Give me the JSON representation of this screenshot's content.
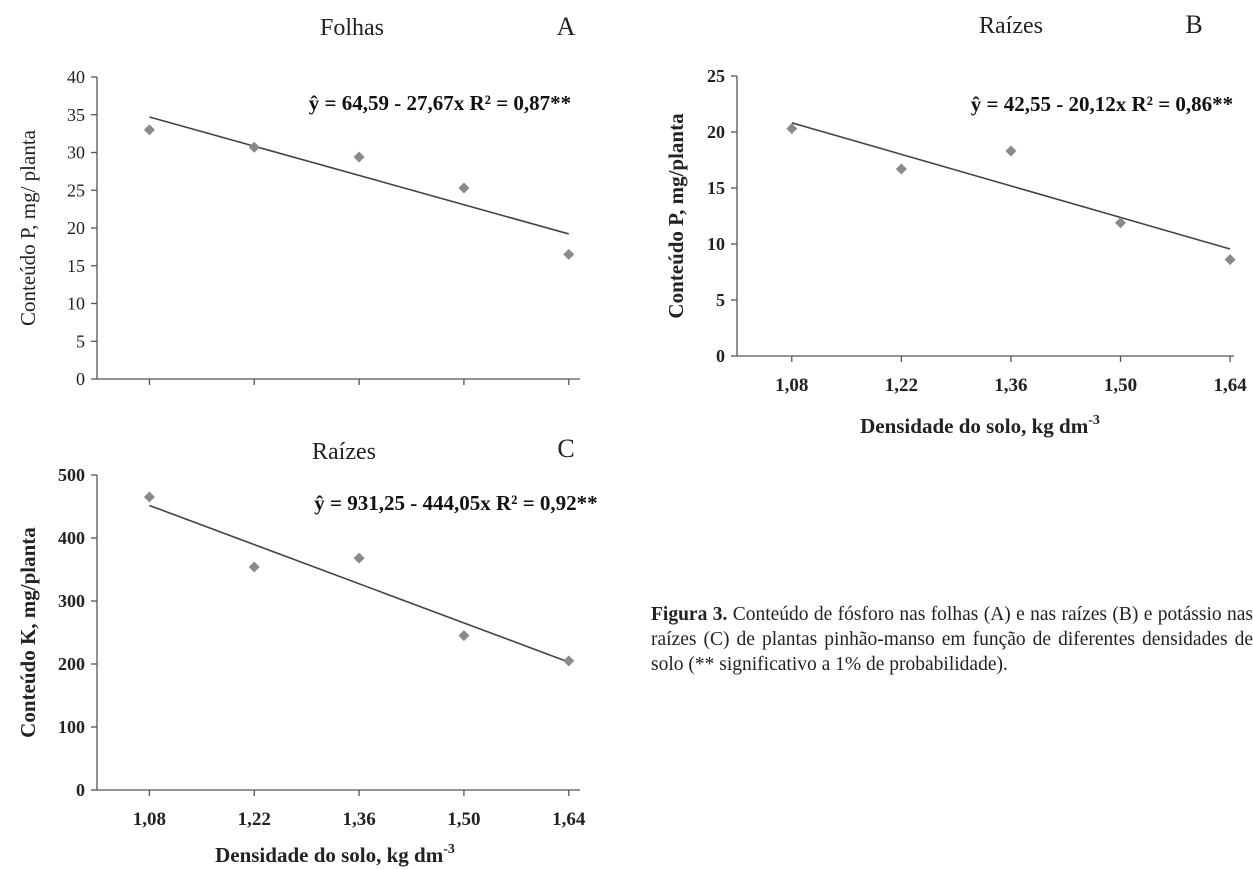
{
  "chart_data": [
    {
      "type": "scatter",
      "panel": "A",
      "title": "Folhas",
      "equation": "ŷ = 64,59 - 27,67x  R² = 0,87**",
      "xlabel": "",
      "ylabel": "Conteúdo P, mg/ planta",
      "ylim": [
        0,
        40
      ],
      "yticks": [
        "0",
        "5",
        "10",
        "15",
        "20",
        "25",
        "30",
        "35",
        "40"
      ],
      "xticks": [],
      "x": [
        1.08,
        1.22,
        1.36,
        1.5,
        1.64
      ],
      "y": [
        33.0,
        30.7,
        29.4,
        25.3,
        16.5
      ],
      "fit": {
        "intercept": 64.59,
        "slope": -27.67
      },
      "grid": false
    },
    {
      "type": "scatter",
      "panel": "B",
      "title": "Raízes",
      "equation": "ŷ = 42,55 - 20,12x  R² = 0,86**",
      "xlabel": "Densidade do solo, kg dm",
      "xlabel_sup": "-3",
      "ylabel": "Conteúdo P, mg/planta",
      "ylim": [
        0,
        25
      ],
      "yticks": [
        "0",
        "5",
        "10",
        "15",
        "20",
        "25"
      ],
      "xticks": [
        "1,08",
        "1,22",
        "1,36",
        "1,50",
        "1,64"
      ],
      "x": [
        1.08,
        1.22,
        1.36,
        1.5,
        1.64
      ],
      "y": [
        20.3,
        16.7,
        18.3,
        11.9,
        8.6
      ],
      "fit": {
        "intercept": 42.55,
        "slope": -20.12
      },
      "grid": false
    },
    {
      "type": "scatter",
      "panel": "C",
      "title": "Raízes",
      "equation": "ŷ = 931,25 - 444,05x  R² = 0,92**",
      "xlabel": "Densidade do solo, kg dm",
      "xlabel_sup": "-3",
      "ylabel": "Conteúdo K, mg/planta",
      "ylim": [
        0,
        500
      ],
      "yticks": [
        "0",
        "100",
        "200",
        "300",
        "400",
        "500"
      ],
      "xticks": [
        "1,08",
        "1,22",
        "1,36",
        "1,50",
        "1,64"
      ],
      "x": [
        1.08,
        1.22,
        1.36,
        1.5,
        1.64
      ],
      "y": [
        465,
        354,
        368,
        245,
        205
      ],
      "fit": {
        "intercept": 931.25,
        "slope": -444.05
      },
      "grid": false
    }
  ],
  "caption": {
    "bold": "Figura 3.",
    "text": " Conteúdo de fósforo nas folhas (A) e nas raízes (B) e potássio nas raízes (C) de plantas pinhão-manso em função de diferentes densidades de solo (** significativo a 1% de probabilidade)."
  }
}
